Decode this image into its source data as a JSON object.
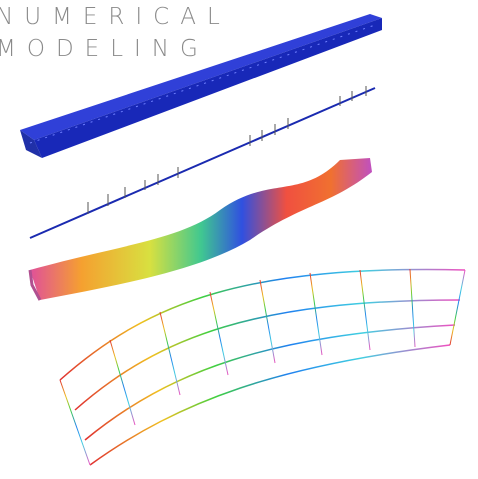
{
  "heading": {
    "line1": "NUMERICAL",
    "line2": "MODELING"
  }
}
